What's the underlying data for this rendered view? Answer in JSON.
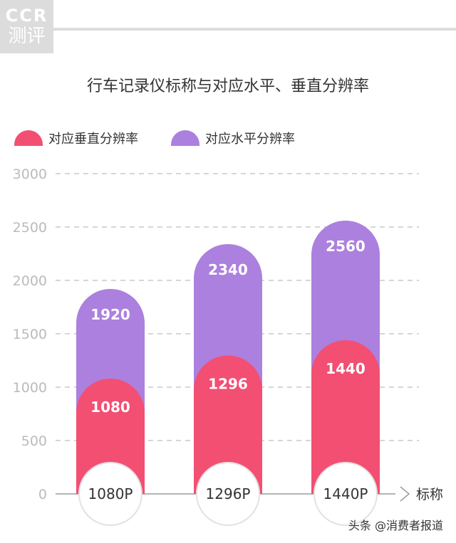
{
  "logo": {
    "line1": "CCR",
    "line2": "测评"
  },
  "footer": "头条 @消费者报道",
  "colors": {
    "vertical": "#f24f73",
    "horizontal": "#ac80de",
    "grid": "#c9c9c9",
    "axis": "#9b9b9b"
  },
  "chart_data": {
    "type": "bar",
    "title": "行车记录仪标称与对应水平、垂直分辨率",
    "xlabel": "标称",
    "ylabel": "",
    "categories": [
      "1080P",
      "1296P",
      "1440P"
    ],
    "series": [
      {
        "name": "对应垂直分辨率",
        "values": [
          1080,
          1296,
          1440
        ]
      },
      {
        "name": "对应水平分辨率",
        "values": [
          1920,
          2340,
          2560
        ]
      }
    ],
    "ylim": [
      0,
      3000
    ],
    "yticks": [
      "0",
      "500",
      "1000",
      "1500",
      "2000",
      "2500",
      "3000"
    ],
    "grid": true,
    "legend": "top-left"
  }
}
